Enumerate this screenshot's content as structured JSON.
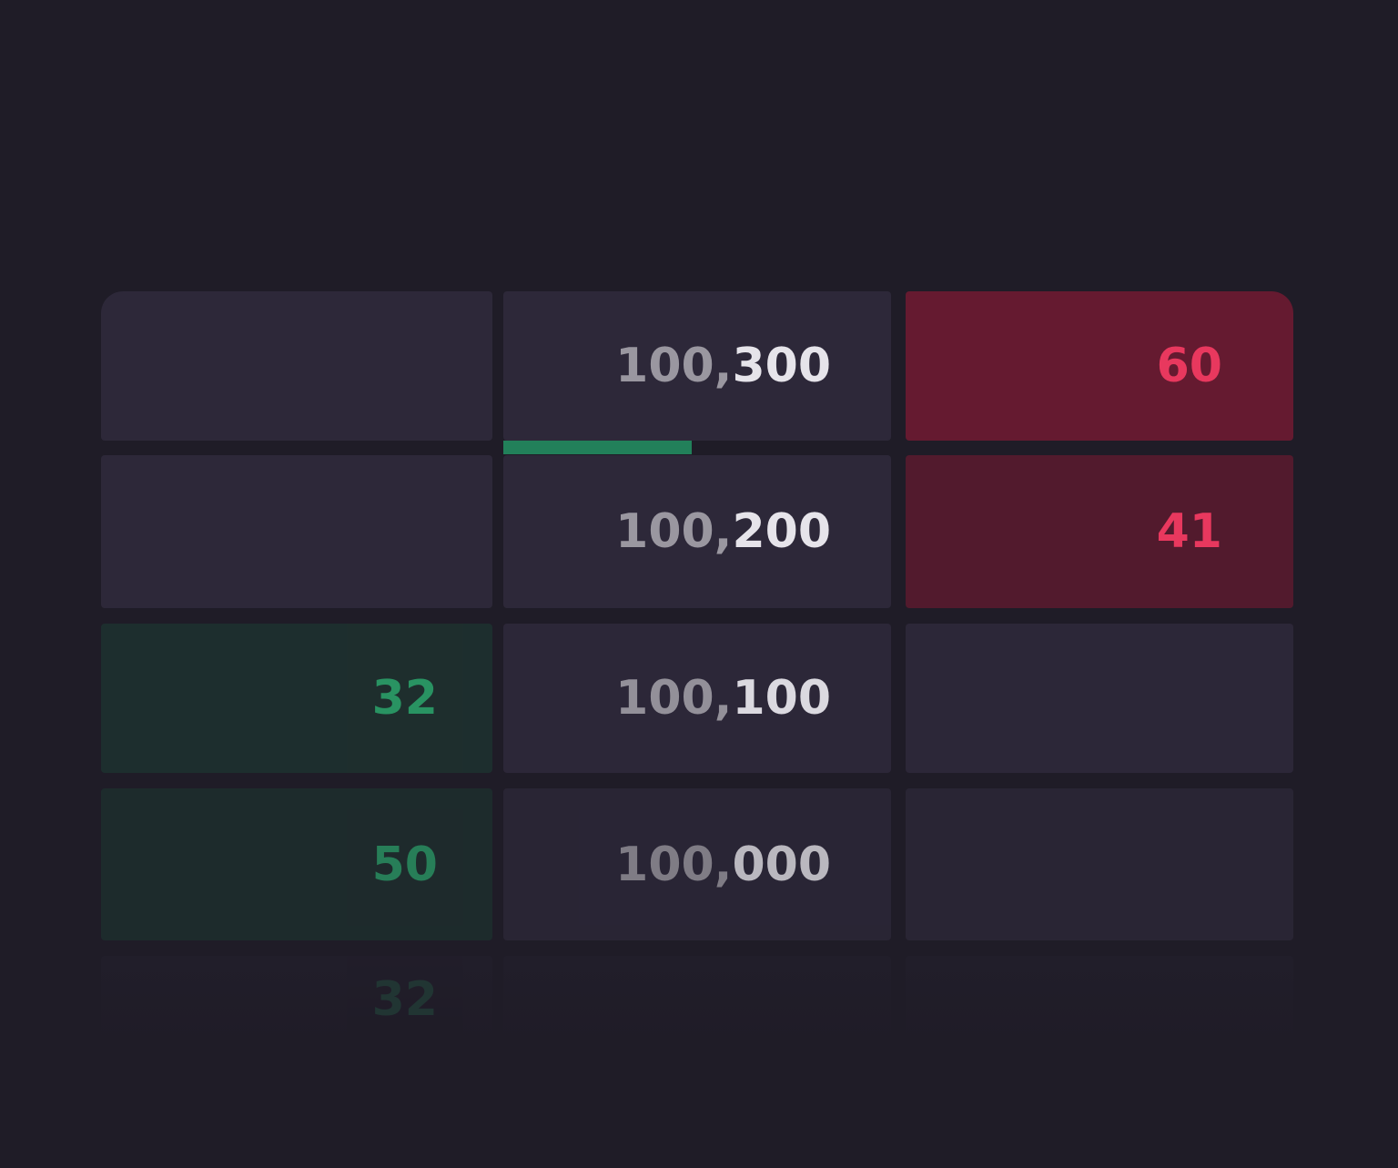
{
  "ladder": {
    "rows": [
      {
        "bid": null,
        "price_major": "100,",
        "price_minor": "300",
        "ask": "60"
      },
      {
        "bid": null,
        "price_major": "100,",
        "price_minor": "200",
        "ask": "41"
      },
      {
        "bid": "32",
        "price_major": "100,",
        "price_minor": "100",
        "ask": null
      },
      {
        "bid": "50",
        "price_major": "100,",
        "price_minor": "000",
        "ask": null
      },
      {
        "bid": "32",
        "price_major": null,
        "price_minor": null,
        "ask": null
      }
    ]
  }
}
